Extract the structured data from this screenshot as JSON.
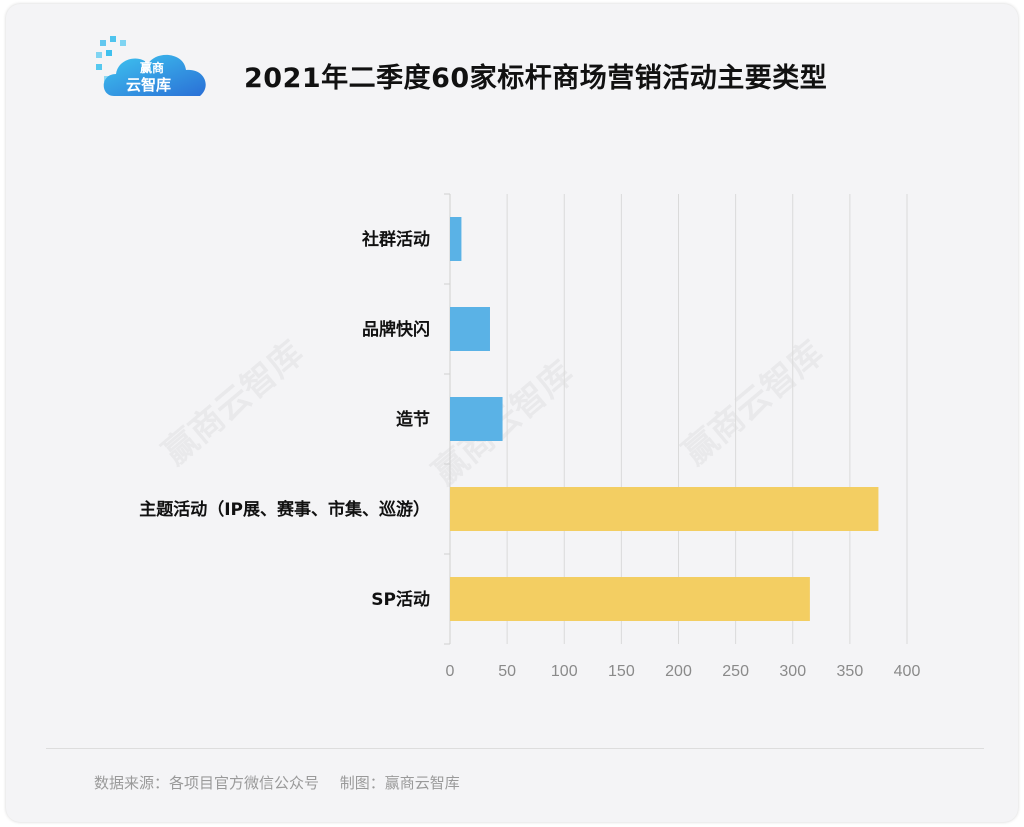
{
  "logo": {
    "line1": "赢商",
    "line2": "云智库"
  },
  "title": "2021年二季度60家标杆商场营销活动主要类型",
  "chart_data": {
    "type": "bar",
    "orientation": "horizontal",
    "title": "2021年二季度60家标杆商场营销活动主要类型",
    "categories": [
      "社群活动",
      "品牌快闪",
      "造节",
      "主题活动（IP展、赛事、市集、巡游）",
      "SP活动"
    ],
    "values": [
      10,
      35,
      46,
      375,
      315
    ],
    "bar_colors": [
      "#5ab2e6",
      "#5ab2e6",
      "#5ab2e6",
      "#f3ce62",
      "#f3ce62"
    ],
    "xlim": [
      0,
      400
    ],
    "x_ticks": [
      0,
      50,
      100,
      150,
      200,
      250,
      300,
      350,
      400
    ],
    "grid": true,
    "xlabel": "",
    "ylabel": ""
  },
  "watermark": "赢商云智库",
  "footer": {
    "source": "数据来源：各项目官方微信公众号",
    "maker": "制图：赢商云智库"
  }
}
